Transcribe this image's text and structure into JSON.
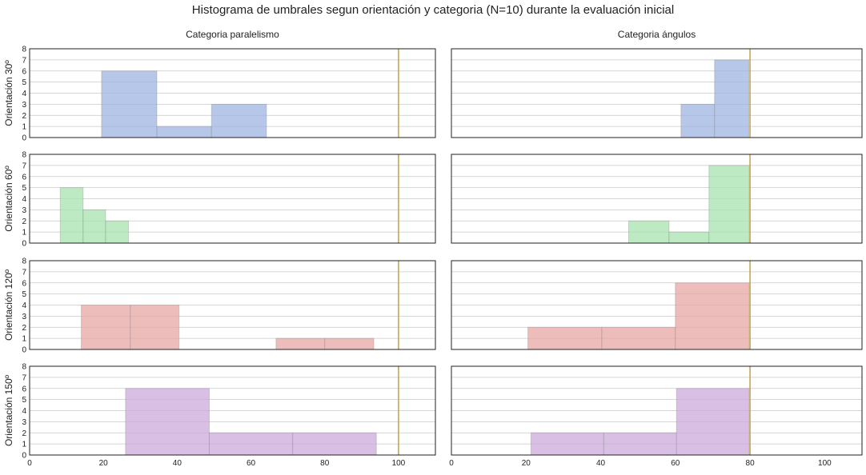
{
  "figure": {
    "title": "Histograma de umbrales segun orientación y categoria (N=10) durante la evaluación inicial",
    "col_titles": [
      "Categoria paralelismo",
      "Categoria ángulos"
    ],
    "row_labels": [
      "Orientación 30º",
      "Orientación 60º",
      "Orientación 120º",
      "Orientación 150º"
    ],
    "row_colors": [
      "#9db4e3",
      "#a7e3ad",
      "#e7a7a4",
      "#cba9da"
    ],
    "reference_line_color": "#c8a64a"
  },
  "chart_data": [
    {
      "type": "bar",
      "row": 0,
      "col": 0,
      "ylabel": "Orientación 30º",
      "xlim": [
        0,
        110
      ],
      "ylim": [
        0,
        8
      ],
      "ref_line": 100,
      "bins": [
        {
          "x0": 19.5,
          "x1": 34.5,
          "count": 6
        },
        {
          "x0": 34.5,
          "x1": 49.3,
          "count": 1
        },
        {
          "x0": 49.3,
          "x1": 64.2,
          "count": 3
        }
      ]
    },
    {
      "type": "bar",
      "row": 0,
      "col": 1,
      "xlim": [
        0,
        110
      ],
      "ylim": [
        0,
        8
      ],
      "ref_line": 80,
      "bins": [
        {
          "x0": 61.5,
          "x1": 70.5,
          "count": 3
        },
        {
          "x0": 70.5,
          "x1": 79.7,
          "count": 7
        }
      ]
    },
    {
      "type": "bar",
      "row": 1,
      "col": 0,
      "ylabel": "Orientación 60º",
      "xlim": [
        0,
        110
      ],
      "ylim": [
        0,
        8
      ],
      "ref_line": 100,
      "bins": [
        {
          "x0": 8.3,
          "x1": 14.5,
          "count": 5
        },
        {
          "x0": 14.5,
          "x1": 20.6,
          "count": 3
        },
        {
          "x0": 20.6,
          "x1": 26.8,
          "count": 2
        }
      ]
    },
    {
      "type": "bar",
      "row": 1,
      "col": 1,
      "xlim": [
        0,
        110
      ],
      "ylim": [
        0,
        8
      ],
      "ref_line": 80,
      "bins": [
        {
          "x0": 47.5,
          "x1": 58.3,
          "count": 2
        },
        {
          "x0": 58.3,
          "x1": 69.0,
          "count": 1
        },
        {
          "x0": 69.0,
          "x1": 79.8,
          "count": 7
        }
      ]
    },
    {
      "type": "bar",
      "row": 2,
      "col": 0,
      "ylabel": "Orientación 120º",
      "xlim": [
        0,
        110
      ],
      "ylim": [
        0,
        8
      ],
      "ref_line": 100,
      "bins": [
        {
          "x0": 14.0,
          "x1": 27.3,
          "count": 4
        },
        {
          "x0": 27.3,
          "x1": 40.5,
          "count": 4
        },
        {
          "x0": 66.8,
          "x1": 80.0,
          "count": 1
        },
        {
          "x0": 80.0,
          "x1": 93.3,
          "count": 1
        }
      ]
    },
    {
      "type": "bar",
      "row": 2,
      "col": 1,
      "xlim": [
        0,
        110
      ],
      "ylim": [
        0,
        8
      ],
      "ref_line": 80,
      "bins": [
        {
          "x0": 20.5,
          "x1": 40.3,
          "count": 2
        },
        {
          "x0": 40.3,
          "x1": 60.0,
          "count": 2
        },
        {
          "x0": 60.0,
          "x1": 79.8,
          "count": 6
        }
      ]
    },
    {
      "type": "bar",
      "row": 3,
      "col": 0,
      "ylabel": "Orientación 150º",
      "xlim": [
        0,
        110
      ],
      "ylim": [
        0,
        8
      ],
      "ref_line": 100,
      "xticks": [
        0,
        20,
        40,
        60,
        80,
        100
      ],
      "bins": [
        {
          "x0": 26.0,
          "x1": 48.7,
          "count": 6
        },
        {
          "x0": 48.7,
          "x1": 71.3,
          "count": 2
        },
        {
          "x0": 71.3,
          "x1": 94.0,
          "count": 2
        }
      ]
    },
    {
      "type": "bar",
      "row": 3,
      "col": 1,
      "xlim": [
        0,
        110
      ],
      "ylim": [
        0,
        8
      ],
      "ref_line": 80,
      "xticks": [
        0,
        20,
        40,
        60,
        80,
        100
      ],
      "bins": [
        {
          "x0": 21.3,
          "x1": 40.8,
          "count": 2
        },
        {
          "x0": 40.8,
          "x1": 60.3,
          "count": 2
        },
        {
          "x0": 60.3,
          "x1": 79.8,
          "count": 6
        }
      ]
    }
  ]
}
